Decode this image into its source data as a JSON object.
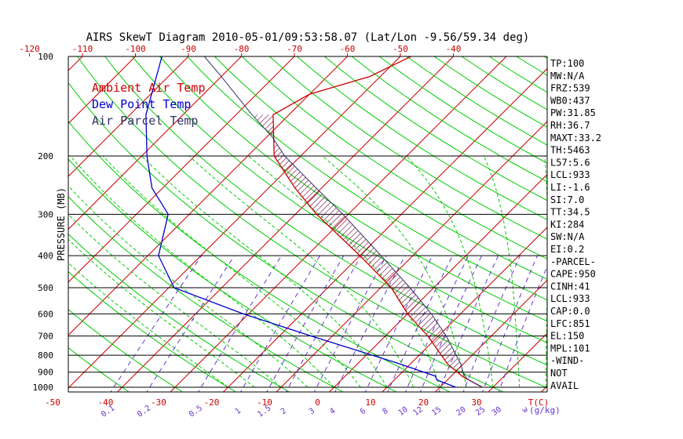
{
  "chart_data": {
    "type": "line",
    "title": "AIRS SkewT Diagram 2010-05-01/09:53:58.07 (Lat/Lon -9.56/59.34 deg)",
    "ylabel": "PRESSURE (MB)",
    "y_scale": "log",
    "ylim": [
      1000,
      100
    ],
    "pressure_ticks": [
      100,
      200,
      300,
      400,
      500,
      600,
      700,
      800,
      900,
      1000
    ],
    "top_temp_ticks": [
      -120,
      -110,
      -100,
      -90,
      -80,
      -70,
      -60,
      -50,
      -40
    ],
    "bottom_temp_ticks": [
      -50,
      -40,
      -30,
      -20,
      -10,
      0,
      10,
      20,
      30
    ],
    "bottom_temp_unit": "T(C)",
    "mixing_ratio_ticks": [
      "0.1",
      "0.2",
      "0.5",
      "1",
      "1.5",
      "2",
      "3",
      "4",
      "6",
      "8",
      "10",
      "12",
      "15",
      "20",
      "25",
      "30"
    ],
    "mixing_ratio_unit": "(g/kg)",
    "mixing_ratio_prefix": "w",
    "skew_isotherm_spacing_c": 10,
    "legend": [
      "Ambient Air Temp",
      "Dew Point Temp",
      "Air Parcel Temp"
    ],
    "legend_placement": "top-left",
    "series": [
      {
        "name": "Ambient Air Temp",
        "color": "#cc0000",
        "points": [
          [
            1000,
            28
          ],
          [
            950,
            24
          ],
          [
            925,
            22
          ],
          [
            850,
            17
          ],
          [
            700,
            8
          ],
          [
            600,
            0
          ],
          [
            500,
            -8
          ],
          [
            400,
            -20
          ],
          [
            300,
            -36
          ],
          [
            250,
            -45
          ],
          [
            200,
            -55
          ],
          [
            150,
            -63
          ],
          [
            130,
            -60
          ],
          [
            115,
            -52
          ],
          [
            100,
            -48
          ]
        ]
      },
      {
        "name": "Dew Point Temp",
        "color": "#0000cc",
        "points": [
          [
            1000,
            23
          ],
          [
            950,
            18
          ],
          [
            925,
            17
          ],
          [
            850,
            8
          ],
          [
            700,
            -14
          ],
          [
            600,
            -31
          ],
          [
            500,
            -49
          ],
          [
            400,
            -58
          ],
          [
            300,
            -64
          ],
          [
            280,
            -67
          ],
          [
            250,
            -72
          ],
          [
            200,
            -79
          ],
          [
            150,
            -87
          ],
          [
            100,
            -95
          ]
        ]
      },
      {
        "name": "Air Parcel Temp",
        "color": "#333366",
        "points": [
          [
            1000,
            28
          ],
          [
            950,
            24
          ],
          [
            933,
            23
          ],
          [
            900,
            21.5
          ],
          [
            850,
            19.5
          ],
          [
            800,
            17
          ],
          [
            700,
            11.5
          ],
          [
            600,
            4.5
          ],
          [
            500,
            -4.5
          ],
          [
            400,
            -16
          ],
          [
            300,
            -31
          ],
          [
            250,
            -41
          ],
          [
            200,
            -53
          ],
          [
            175,
            -59
          ],
          [
            150,
            -67
          ],
          [
            130,
            -74
          ],
          [
            115,
            -80
          ],
          [
            100,
            -87
          ]
        ]
      }
    ],
    "stats": [
      "TP:100",
      "MW:N/A",
      "FRZ:539",
      "WB0:437",
      "PW:31.85",
      "RH:36.7",
      "MAXT:33.2",
      "TH:5463",
      "L57:5.6",
      "LCL:933",
      "LI:-1.6",
      "SI:7.0",
      "TT:34.5",
      "KI:284",
      "SW:N/A",
      "EI:0.2",
      "-PARCEL-",
      "CAPE:950",
      "CINH:41",
      "LCL:933",
      "CAP:0.0",
      "LFC:851",
      "EL:150",
      "MPL:101",
      "-WIND-",
      "NOT",
      "AVAIL"
    ],
    "colors": {
      "frame": "#000000",
      "isotherm": "#cc0000",
      "dry_adiabat": "#00cc00",
      "moist_adiabat": "#00cc00",
      "mixing_ratio": "#6633cc",
      "temp_ticks": "#cc0000",
      "mix_ticks": "#6633cc",
      "hatch": "#660033"
    }
  }
}
